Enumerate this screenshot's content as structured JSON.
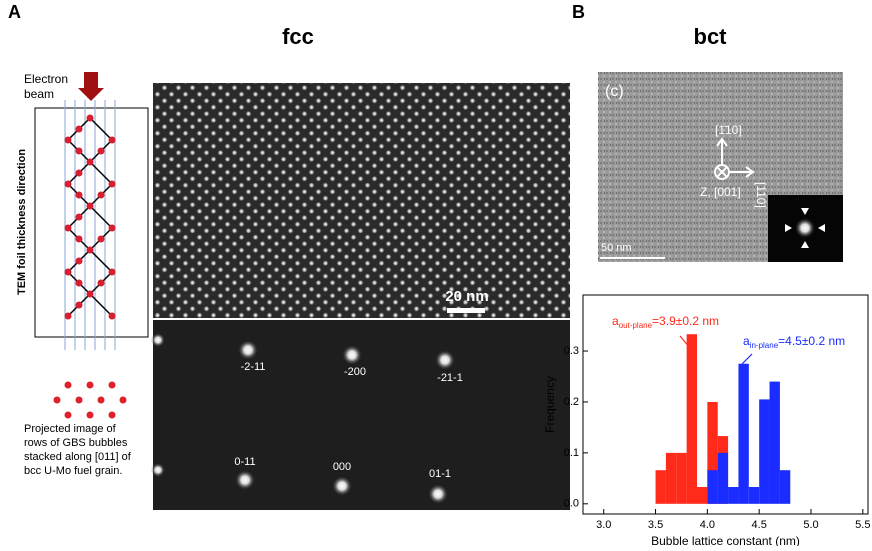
{
  "panels": {
    "a": {
      "letter": "A",
      "title": "fcc",
      "beam_label": [
        "Electron",
        "beam"
      ],
      "axis_label": "TEM foil thickness direction",
      "caption": [
        "Projected image of",
        "rows of GBS bubbles",
        "stacked along [011] of",
        "bcc U-Mo fuel grain."
      ],
      "scale_bar": "20 nm",
      "spots": [
        "-2-11",
        "-200",
        "-21-1",
        "0-11",
        "000",
        "01-1"
      ]
    },
    "b": {
      "letter": "B",
      "title": "bct",
      "image_label": "(c)",
      "dir_labels": [
        "[1̄10]",
        "[110]",
        "Z, [001]"
      ],
      "scale_bar": "50 nm"
    }
  },
  "chart_data": {
    "type": "bar",
    "x_label": "Bubble lattice constant (nm)",
    "y_label": "Frequency",
    "xlim": [
      2.8,
      5.55
    ],
    "ylim": [
      -0.02,
      0.41
    ],
    "xticks": [
      {
        "value": 3,
        "label": "3.0"
      },
      3.5,
      {
        "value": 4,
        "label": "4.0"
      },
      4.5,
      {
        "value": 5,
        "label": "5.0"
      },
      5.5
    ],
    "yticks": [
      {
        "value": 0,
        "label": "0.0"
      },
      0.1,
      0.2,
      0.3
    ],
    "series": [
      {
        "name": "out-plane",
        "color": "#ff2a1a",
        "x": [
          3.55,
          3.65,
          3.75,
          3.85,
          3.95,
          4.05,
          4.15
        ],
        "values": [
          0.066,
          0.1,
          0.1,
          0.333,
          0.033,
          0.2,
          0.133
        ]
      },
      {
        "name": "in-plane",
        "color": "#1a2cff",
        "x": [
          4.05,
          4.15,
          4.25,
          4.35,
          4.45,
          4.55,
          4.65,
          4.75
        ],
        "values": [
          0.066,
          0.1,
          0.033,
          0.275,
          0.033,
          0.205,
          0.24,
          0.066
        ]
      }
    ],
    "annotations": [
      {
        "base": "a",
        "sub": "out-plane",
        "text": "=3.9±0.2 nm"
      },
      {
        "base": "a",
        "sub": "in-plane",
        "text": "=4.5±0.2 nm"
      }
    ]
  }
}
